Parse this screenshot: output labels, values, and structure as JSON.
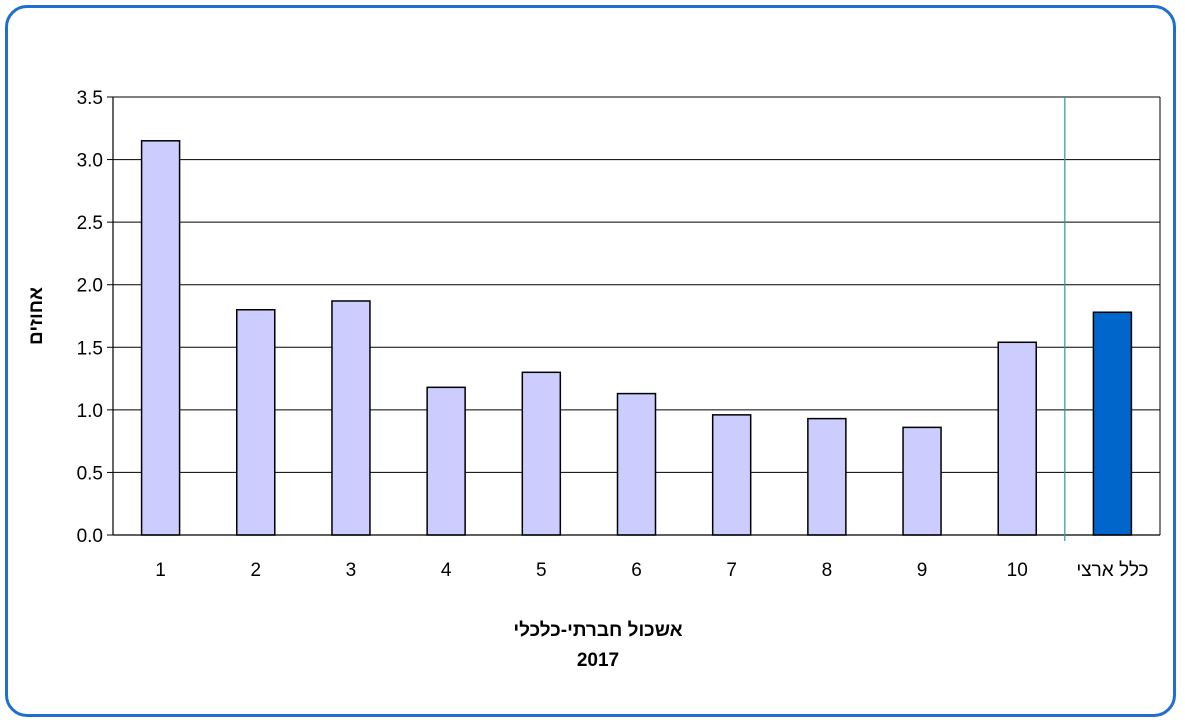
{
  "chart_data": {
    "type": "bar",
    "xlabel": "אשכול חברתי-כלכלי",
    "xlabel_sub": "2017",
    "ylabel": "אחוזים",
    "ylim": [
      0,
      3.5
    ],
    "ytick_labels": [
      "0.0",
      "0.5",
      "1.0",
      "1.5",
      "2.0",
      "2.5",
      "3.0",
      "3.5"
    ],
    "grid": true,
    "categories": [
      "1",
      "2",
      "3",
      "4",
      "5",
      "6",
      "7",
      "8",
      "9",
      "10",
      "כלל ארצי"
    ],
    "values": [
      3.15,
      1.8,
      1.87,
      1.18,
      1.3,
      1.13,
      0.96,
      0.93,
      0.86,
      1.54,
      1.78
    ],
    "colors": {
      "bar": "#ccccff",
      "highlight_bar": "#0066cc",
      "bar_outline": "#000000",
      "grid": "#000000",
      "separator": "#2a9d8f",
      "frame": "#1e6fcf"
    },
    "highlight_category": "כלל ארצי"
  }
}
